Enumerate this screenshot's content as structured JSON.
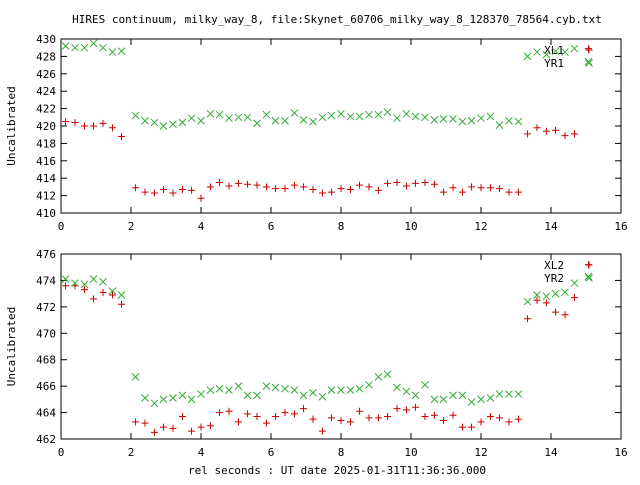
{
  "title": "HIRES continuum, milky_way_8, file:Skynet_60706_milky_way_8_128370_78564.cyb.txt",
  "xlabel": "rel seconds : UT date 2025-01-31T11:36:36.000",
  "colors": {
    "XL": "#cc0000",
    "YR": "#33aa33",
    "axis": "#000000"
  },
  "chart_data": [
    {
      "type": "scatter",
      "ylabel": "Uncalibrated",
      "xlim": [
        0,
        16
      ],
      "ylim": [
        410,
        430
      ],
      "xticks": [
        0,
        2,
        4,
        6,
        8,
        10,
        12,
        14,
        16
      ],
      "yticks": [
        410,
        412,
        414,
        416,
        418,
        420,
        422,
        424,
        426,
        428,
        430
      ],
      "grid": false,
      "legend_position": "top-right",
      "series": [
        {
          "name": "XL1",
          "marker": "plus",
          "color": "#cc0000",
          "points": [
            [
              0.13,
              420.5
            ],
            [
              0.4,
              420.4
            ],
            [
              0.67,
              420.0
            ],
            [
              0.93,
              420.0
            ],
            [
              1.2,
              420.3
            ],
            [
              1.47,
              419.8
            ],
            [
              1.73,
              418.8
            ],
            [
              2.13,
              412.9
            ],
            [
              2.4,
              412.4
            ],
            [
              2.67,
              412.3
            ],
            [
              2.93,
              412.7
            ],
            [
              3.2,
              412.3
            ],
            [
              3.47,
              412.7
            ],
            [
              3.73,
              412.6
            ],
            [
              4.0,
              411.7
            ],
            [
              4.27,
              413.0
            ],
            [
              4.53,
              413.5
            ],
            [
              4.8,
              413.1
            ],
            [
              5.07,
              413.4
            ],
            [
              5.33,
              413.3
            ],
            [
              5.6,
              413.2
            ],
            [
              5.87,
              413.0
            ],
            [
              6.13,
              412.8
            ],
            [
              6.4,
              412.8
            ],
            [
              6.67,
              413.2
            ],
            [
              6.93,
              413.0
            ],
            [
              7.2,
              412.7
            ],
            [
              7.47,
              412.3
            ],
            [
              7.73,
              412.4
            ],
            [
              8.0,
              412.8
            ],
            [
              8.27,
              412.7
            ],
            [
              8.53,
              413.2
            ],
            [
              8.8,
              413.0
            ],
            [
              9.07,
              412.6
            ],
            [
              9.33,
              413.4
            ],
            [
              9.6,
              413.5
            ],
            [
              9.87,
              413.1
            ],
            [
              10.13,
              413.4
            ],
            [
              10.4,
              413.5
            ],
            [
              10.67,
              413.3
            ],
            [
              10.93,
              412.4
            ],
            [
              11.2,
              412.9
            ],
            [
              11.47,
              412.4
            ],
            [
              11.73,
              413.0
            ],
            [
              12.0,
              412.9
            ],
            [
              12.27,
              412.9
            ],
            [
              12.53,
              412.8
            ],
            [
              12.8,
              412.4
            ],
            [
              13.07,
              412.4
            ],
            [
              13.33,
              419.1
            ],
            [
              13.6,
              419.8
            ],
            [
              13.87,
              419.4
            ],
            [
              14.13,
              419.5
            ],
            [
              14.4,
              418.9
            ],
            [
              14.67,
              419.1
            ],
            [
              15.07,
              428.9
            ]
          ]
        },
        {
          "name": "YR1",
          "marker": "cross",
          "color": "#33aa33",
          "points": [
            [
              0.13,
              429.2
            ],
            [
              0.4,
              429.0
            ],
            [
              0.67,
              429.0
            ],
            [
              0.93,
              429.5
            ],
            [
              1.2,
              429.0
            ],
            [
              1.47,
              428.5
            ],
            [
              1.73,
              428.6
            ],
            [
              2.13,
              421.2
            ],
            [
              2.4,
              420.6
            ],
            [
              2.67,
              420.4
            ],
            [
              2.93,
              420.0
            ],
            [
              3.2,
              420.2
            ],
            [
              3.47,
              420.4
            ],
            [
              3.73,
              420.9
            ],
            [
              4.0,
              420.6
            ],
            [
              4.27,
              421.4
            ],
            [
              4.53,
              421.3
            ],
            [
              4.8,
              420.9
            ],
            [
              5.07,
              421.0
            ],
            [
              5.33,
              421.0
            ],
            [
              5.6,
              420.3
            ],
            [
              5.87,
              421.3
            ],
            [
              6.13,
              420.6
            ],
            [
              6.4,
              420.6
            ],
            [
              6.67,
              421.5
            ],
            [
              6.93,
              420.7
            ],
            [
              7.2,
              420.5
            ],
            [
              7.47,
              421.0
            ],
            [
              7.73,
              421.2
            ],
            [
              8.0,
              421.4
            ],
            [
              8.27,
              421.1
            ],
            [
              8.53,
              421.1
            ],
            [
              8.8,
              421.3
            ],
            [
              9.07,
              421.3
            ],
            [
              9.33,
              421.6
            ],
            [
              9.6,
              420.9
            ],
            [
              9.87,
              421.4
            ],
            [
              10.13,
              421.1
            ],
            [
              10.4,
              421.0
            ],
            [
              10.67,
              420.7
            ],
            [
              10.93,
              420.8
            ],
            [
              11.2,
              420.8
            ],
            [
              11.47,
              420.5
            ],
            [
              11.73,
              420.6
            ],
            [
              12.0,
              420.9
            ],
            [
              12.27,
              421.1
            ],
            [
              12.53,
              420.1
            ],
            [
              12.8,
              420.6
            ],
            [
              13.07,
              420.5
            ],
            [
              13.33,
              428.0
            ],
            [
              13.6,
              428.5
            ],
            [
              13.87,
              428.2
            ],
            [
              14.13,
              428.6
            ],
            [
              14.4,
              428.5
            ],
            [
              14.67,
              428.9
            ],
            [
              15.07,
              427.4
            ]
          ]
        }
      ]
    },
    {
      "type": "scatter",
      "ylabel": "Uncalibrated",
      "xlim": [
        0,
        16
      ],
      "ylim": [
        462,
        476
      ],
      "xticks": [
        0,
        2,
        4,
        6,
        8,
        10,
        12,
        14,
        16
      ],
      "yticks": [
        462,
        464,
        466,
        468,
        470,
        472,
        474,
        476
      ],
      "grid": false,
      "legend_position": "top-right",
      "series": [
        {
          "name": "XL2",
          "marker": "plus",
          "color": "#cc0000",
          "points": [
            [
              0.13,
              473.6
            ],
            [
              0.4,
              473.6
            ],
            [
              0.67,
              473.3
            ],
            [
              0.93,
              472.6
            ],
            [
              1.2,
              473.1
            ],
            [
              1.47,
              472.9
            ],
            [
              1.73,
              472.2
            ],
            [
              2.13,
              463.3
            ],
            [
              2.4,
              463.2
            ],
            [
              2.67,
              462.5
            ],
            [
              2.93,
              462.9
            ],
            [
              3.2,
              462.8
            ],
            [
              3.47,
              463.7
            ],
            [
              3.73,
              462.6
            ],
            [
              4.0,
              462.9
            ],
            [
              4.27,
              463.0
            ],
            [
              4.53,
              464.0
            ],
            [
              4.8,
              464.1
            ],
            [
              5.07,
              463.3
            ],
            [
              5.33,
              463.9
            ],
            [
              5.6,
              463.7
            ],
            [
              5.87,
              463.2
            ],
            [
              6.13,
              463.7
            ],
            [
              6.4,
              464.0
            ],
            [
              6.67,
              463.9
            ],
            [
              6.93,
              464.3
            ],
            [
              7.2,
              463.5
            ],
            [
              7.47,
              462.6
            ],
            [
              7.73,
              463.6
            ],
            [
              8.0,
              463.4
            ],
            [
              8.27,
              463.3
            ],
            [
              8.53,
              464.1
            ],
            [
              8.8,
              463.6
            ],
            [
              9.07,
              463.6
            ],
            [
              9.33,
              463.7
            ],
            [
              9.6,
              464.3
            ],
            [
              9.87,
              464.2
            ],
            [
              10.13,
              464.4
            ],
            [
              10.4,
              463.7
            ],
            [
              10.67,
              463.8
            ],
            [
              10.93,
              463.4
            ],
            [
              11.2,
              463.8
            ],
            [
              11.47,
              462.9
            ],
            [
              11.73,
              462.9
            ],
            [
              12.0,
              463.3
            ],
            [
              12.27,
              463.7
            ],
            [
              12.53,
              463.6
            ],
            [
              12.8,
              463.3
            ],
            [
              13.07,
              463.5
            ],
            [
              13.33,
              471.1
            ],
            [
              13.6,
              472.5
            ],
            [
              13.87,
              472.3
            ],
            [
              14.13,
              471.6
            ],
            [
              14.4,
              471.4
            ],
            [
              14.67,
              472.7
            ],
            [
              15.07,
              475.2
            ]
          ]
        },
        {
          "name": "YR2",
          "marker": "cross",
          "color": "#33aa33",
          "points": [
            [
              0.13,
              474.1
            ],
            [
              0.4,
              473.8
            ],
            [
              0.67,
              473.7
            ],
            [
              0.93,
              474.1
            ],
            [
              1.2,
              473.9
            ],
            [
              1.47,
              473.2
            ],
            [
              1.73,
              472.9
            ],
            [
              2.13,
              466.7
            ],
            [
              2.4,
              465.1
            ],
            [
              2.67,
              464.7
            ],
            [
              2.93,
              465.0
            ],
            [
              3.2,
              465.1
            ],
            [
              3.47,
              465.3
            ],
            [
              3.73,
              465.0
            ],
            [
              4.0,
              465.4
            ],
            [
              4.27,
              465.7
            ],
            [
              4.53,
              465.8
            ],
            [
              4.8,
              465.7
            ],
            [
              5.07,
              466.0
            ],
            [
              5.33,
              465.3
            ],
            [
              5.6,
              465.3
            ],
            [
              5.87,
              466.0
            ],
            [
              6.13,
              465.9
            ],
            [
              6.4,
              465.8
            ],
            [
              6.67,
              465.7
            ],
            [
              6.93,
              465.3
            ],
            [
              7.2,
              465.5
            ],
            [
              7.47,
              465.2
            ],
            [
              7.73,
              465.7
            ],
            [
              8.0,
              465.7
            ],
            [
              8.27,
              465.7
            ],
            [
              8.53,
              465.8
            ],
            [
              8.8,
              466.1
            ],
            [
              9.07,
              466.7
            ],
            [
              9.33,
              466.9
            ],
            [
              9.6,
              465.9
            ],
            [
              9.87,
              465.6
            ],
            [
              10.13,
              465.3
            ],
            [
              10.4,
              466.1
            ],
            [
              10.67,
              465.0
            ],
            [
              10.93,
              465.0
            ],
            [
              11.2,
              465.3
            ],
            [
              11.47,
              465.3
            ],
            [
              11.73,
              464.8
            ],
            [
              12.0,
              465.0
            ],
            [
              12.27,
              465.1
            ],
            [
              12.53,
              465.4
            ],
            [
              12.8,
              465.4
            ],
            [
              13.07,
              465.4
            ],
            [
              13.33,
              472.4
            ],
            [
              13.6,
              472.9
            ],
            [
              13.87,
              472.8
            ],
            [
              14.13,
              473.0
            ],
            [
              14.4,
              473.1
            ],
            [
              14.67,
              473.8
            ],
            [
              15.07,
              474.3
            ]
          ]
        }
      ]
    }
  ]
}
